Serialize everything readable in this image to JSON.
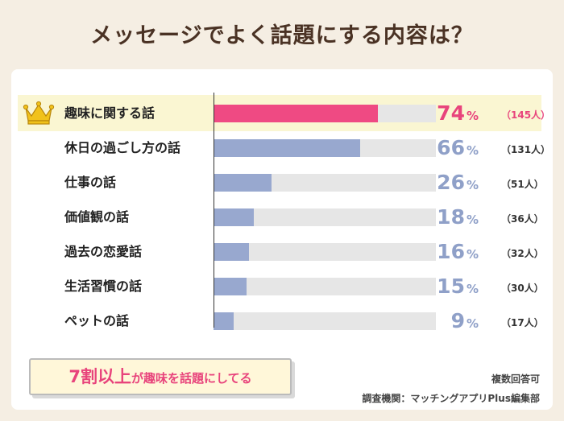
{
  "title": "メッセージでよく話題にする内容は？",
  "chart_data": {
    "type": "bar",
    "orientation": "horizontal",
    "title": "メッセージでよく話題にする内容は？",
    "categories": [
      "趣味に関する話",
      "休日の過ごし方の話",
      "仕事の話",
      "価値観の話",
      "過去の恋愛話",
      "生活習慣の話",
      "ペットの話"
    ],
    "values": [
      74,
      66,
      26,
      18,
      16,
      15,
      9
    ],
    "counts": [
      "（145人）",
      "（131人）",
      "（51人）",
      "（36人）",
      "（32人）",
      "（30人）",
      "（17人）"
    ],
    "unit": "%",
    "xlim": [
      0,
      100
    ],
    "highlight_index": 0
  },
  "colors": {
    "highlight_bar": "#ef4a83",
    "bar": "#98a8cf",
    "highlight_text": "#e8447c",
    "text": "#8fa0c8",
    "track": "#e6e6e6",
    "crown": "#f1c21b"
  },
  "callout": {
    "strong": "7割以上",
    "rest": "が趣味を話題にしてる"
  },
  "notes": {
    "multi_answer": "複数回答可",
    "source": "調査機関：マッチングアプリPlus編集部"
  }
}
